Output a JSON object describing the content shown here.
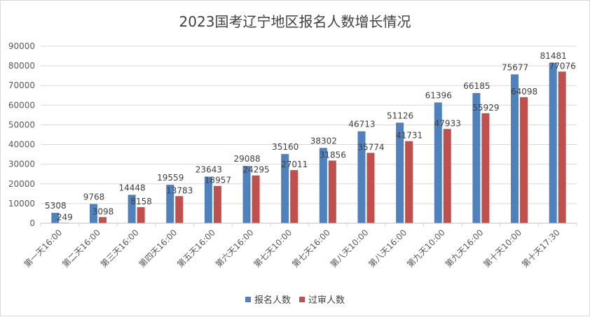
{
  "chart_data": {
    "type": "bar",
    "title": "2023国考辽宁地区报名人数增长情况",
    "categories": [
      "第一天16:00",
      "第二天16:00",
      "第三天16:00",
      "第四天16:00",
      "第五天16:00",
      "第六天16:00",
      "第七天10:00",
      "第七天16:00",
      "第八天10:00",
      "第八天16:00",
      "第九天10:00",
      "第九天16:00",
      "第十天10:00",
      "第十天17:30"
    ],
    "series": [
      {
        "name": "报名人数",
        "color": "#4f81bd",
        "values": [
          5308,
          9768,
          14448,
          19559,
          23643,
          29088,
          35160,
          38302,
          46713,
          51126,
          61396,
          66185,
          75677,
          81481
        ]
      },
      {
        "name": "过审人数",
        "color": "#c0504d",
        "values": [
          249,
          3098,
          8158,
          13783,
          18957,
          24295,
          27011,
          31856,
          35774,
          41731,
          47933,
          55929,
          64098,
          77076
        ]
      }
    ],
    "ylim": [
      0,
      90000
    ],
    "yticks": [
      0,
      10000,
      20000,
      30000,
      40000,
      50000,
      60000,
      70000,
      80000,
      90000
    ],
    "grid": true,
    "legend": "bottom"
  }
}
